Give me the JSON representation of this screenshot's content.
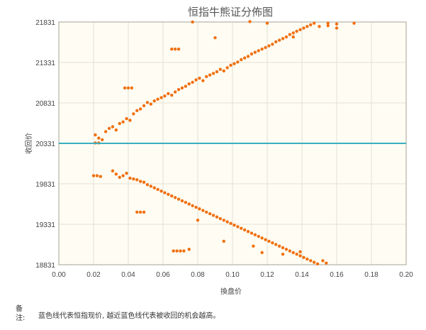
{
  "chart_data": {
    "type": "scatter",
    "title": "恒指牛熊证分佈图",
    "xlabel": "換盘价",
    "ylabel": "收回价",
    "xlim": [
      0,
      0.2
    ],
    "ylim": [
      18831,
      21831
    ],
    "x_ticks": [
      "0.00",
      "0.02",
      "0.04",
      "0.06",
      "0.08",
      "0.10",
      "0.12",
      "0.14",
      "0.16",
      "0.18",
      "0.20"
    ],
    "y_ticks": [
      "18831",
      "19331",
      "19831",
      "20331",
      "20831",
      "21331",
      "21831"
    ],
    "grid": true,
    "colors": {
      "points": "#f07010",
      "reference_line": "#3aaec0",
      "plot_bg": "#fffdf3",
      "grid": "#e3e1d6"
    },
    "reference_line": {
      "y": 20331,
      "meaning": "恒指现价"
    },
    "series": [
      {
        "points": [
          [
            0.021,
            20336
          ],
          [
            0.023,
            20336
          ],
          [
            0.021,
            20436
          ],
          [
            0.023,
            20396
          ],
          [
            0.025,
            20376
          ],
          [
            0.027,
            20476
          ],
          [
            0.029,
            20516
          ],
          [
            0.031,
            20536
          ],
          [
            0.033,
            20496
          ],
          [
            0.035,
            20576
          ],
          [
            0.037,
            20596
          ],
          [
            0.039,
            20636
          ],
          [
            0.041,
            20616
          ],
          [
            0.043,
            20696
          ],
          [
            0.045,
            20736
          ],
          [
            0.047,
            20756
          ],
          [
            0.049,
            20796
          ],
          [
            0.051,
            20836
          ],
          [
            0.053,
            20816
          ],
          [
            0.055,
            20856
          ],
          [
            0.057,
            20876
          ],
          [
            0.059,
            20896
          ],
          [
            0.061,
            20916
          ],
          [
            0.063,
            20946
          ],
          [
            0.065,
            20926
          ],
          [
            0.067,
            20966
          ],
          [
            0.069,
            20996
          ],
          [
            0.071,
            21016
          ],
          [
            0.073,
            21036
          ],
          [
            0.075,
            21066
          ],
          [
            0.077,
            21086
          ],
          [
            0.079,
            21116
          ],
          [
            0.081,
            21136
          ],
          [
            0.083,
            21106
          ],
          [
            0.085,
            21156
          ],
          [
            0.087,
            21176
          ],
          [
            0.089,
            21196
          ],
          [
            0.091,
            21216
          ],
          [
            0.093,
            21246
          ],
          [
            0.095,
            21226
          ],
          [
            0.097,
            21266
          ],
          [
            0.099,
            21296
          ],
          [
            0.101,
            21316
          ],
          [
            0.103,
            21336
          ],
          [
            0.105,
            21366
          ],
          [
            0.107,
            21386
          ],
          [
            0.109,
            21406
          ],
          [
            0.111,
            21436
          ],
          [
            0.113,
            21456
          ],
          [
            0.115,
            21476
          ],
          [
            0.117,
            21496
          ],
          [
            0.119,
            21516
          ],
          [
            0.121,
            21536
          ],
          [
            0.123,
            21556
          ],
          [
            0.125,
            21586
          ],
          [
            0.127,
            21606
          ],
          [
            0.129,
            21626
          ],
          [
            0.131,
            21646
          ],
          [
            0.133,
            21676
          ],
          [
            0.135,
            21696
          ],
          [
            0.137,
            21716
          ],
          [
            0.139,
            21736
          ],
          [
            0.141,
            21756
          ],
          [
            0.143,
            21776
          ],
          [
            0.145,
            21796
          ],
          [
            0.147,
            21816
          ],
          [
            0.038,
            21016
          ],
          [
            0.04,
            21016
          ],
          [
            0.042,
            21016
          ],
          [
            0.065,
            21496
          ],
          [
            0.067,
            21496
          ],
          [
            0.069,
            21496
          ],
          [
            0.077,
            21831
          ],
          [
            0.09,
            21636
          ],
          [
            0.11,
            21836
          ],
          [
            0.12,
            21816
          ],
          [
            0.155,
            21816
          ],
          [
            0.17,
            21816
          ],
          [
            0.155,
            21786
          ],
          [
            0.16,
            21756
          ],
          [
            0.16,
            21806
          ],
          [
            0.15,
            21776
          ],
          [
            0.135,
            21646
          ],
          [
            0.02,
            19931
          ],
          [
            0.022,
            19931
          ],
          [
            0.024,
            19921
          ],
          [
            0.031,
            19991
          ],
          [
            0.033,
            19951
          ],
          [
            0.035,
            19911
          ],
          [
            0.037,
            19931
          ],
          [
            0.039,
            19961
          ],
          [
            0.041,
            19901
          ],
          [
            0.043,
            19891
          ],
          [
            0.045,
            19881
          ],
          [
            0.047,
            19861
          ],
          [
            0.049,
            19851
          ],
          [
            0.051,
            19821
          ],
          [
            0.053,
            19801
          ],
          [
            0.055,
            19781
          ],
          [
            0.057,
            19761
          ],
          [
            0.059,
            19741
          ],
          [
            0.061,
            19721
          ],
          [
            0.063,
            19701
          ],
          [
            0.065,
            19681
          ],
          [
            0.067,
            19661
          ],
          [
            0.069,
            19641
          ],
          [
            0.071,
            19621
          ],
          [
            0.073,
            19601
          ],
          [
            0.075,
            19581
          ],
          [
            0.077,
            19561
          ],
          [
            0.079,
            19541
          ],
          [
            0.081,
            19521
          ],
          [
            0.083,
            19501
          ],
          [
            0.085,
            19481
          ],
          [
            0.087,
            19461
          ],
          [
            0.089,
            19441
          ],
          [
            0.091,
            19421
          ],
          [
            0.093,
            19401
          ],
          [
            0.095,
            19381
          ],
          [
            0.097,
            19361
          ],
          [
            0.099,
            19341
          ],
          [
            0.101,
            19321
          ],
          [
            0.103,
            19301
          ],
          [
            0.105,
            19281
          ],
          [
            0.107,
            19261
          ],
          [
            0.109,
            19241
          ],
          [
            0.111,
            19221
          ],
          [
            0.113,
            19201
          ],
          [
            0.115,
            19181
          ],
          [
            0.117,
            19161
          ],
          [
            0.119,
            19141
          ],
          [
            0.121,
            19121
          ],
          [
            0.123,
            19101
          ],
          [
            0.125,
            19081
          ],
          [
            0.127,
            19061
          ],
          [
            0.129,
            19041
          ],
          [
            0.131,
            19021
          ],
          [
            0.133,
            19001
          ],
          [
            0.135,
            18981
          ],
          [
            0.137,
            18961
          ],
          [
            0.139,
            18941
          ],
          [
            0.141,
            18921
          ],
          [
            0.143,
            18901
          ],
          [
            0.145,
            18881
          ],
          [
            0.147,
            18861
          ],
          [
            0.149,
            18841
          ],
          [
            0.045,
            19481
          ],
          [
            0.047,
            19481
          ],
          [
            0.049,
            19481
          ],
          [
            0.066,
            19001
          ],
          [
            0.068,
            19001
          ],
          [
            0.07,
            19001
          ],
          [
            0.072,
            19001
          ],
          [
            0.075,
            19021
          ],
          [
            0.08,
            19381
          ],
          [
            0.095,
            19121
          ],
          [
            0.112,
            19061
          ],
          [
            0.117,
            18981
          ],
          [
            0.129,
            18961
          ],
          [
            0.139,
            18991
          ],
          [
            0.152,
            18881
          ],
          [
            0.154,
            18851
          ]
        ]
      }
    ]
  },
  "footnote": {
    "label": "备注:",
    "text": "蓝色线代表恒指现价, 越近蓝色线代表被收回的机会越高。"
  }
}
